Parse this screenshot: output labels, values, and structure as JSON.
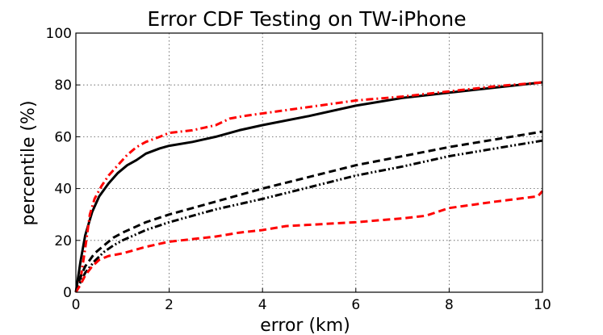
{
  "chart_data": {
    "type": "line",
    "title": "Error CDF Testing on TW-iPhone",
    "xlabel": "error (km)",
    "ylabel": "percentile (%)",
    "xlim": [
      0,
      10
    ],
    "ylim": [
      0,
      100
    ],
    "x_ticks": [
      "0",
      "2",
      "4",
      "6",
      "8",
      "10"
    ],
    "y_ticks": [
      "0",
      "20",
      "40",
      "60",
      "80",
      "100"
    ],
    "grid": true,
    "legend": "none",
    "series": [
      {
        "color": "#000000",
        "style": "solid",
        "points": [
          [
            0,
            0
          ],
          [
            0.1,
            12
          ],
          [
            0.2,
            22
          ],
          [
            0.35,
            31
          ],
          [
            0.5,
            37
          ],
          [
            0.7,
            42
          ],
          [
            0.9,
            46
          ],
          [
            1.1,
            49
          ],
          [
            1.3,
            51
          ],
          [
            1.5,
            53.5
          ],
          [
            1.8,
            55.5
          ],
          [
            2,
            56.5
          ],
          [
            2.5,
            58
          ],
          [
            3,
            60
          ],
          [
            3.5,
            62.5
          ],
          [
            4,
            64.5
          ],
          [
            5,
            68
          ],
          [
            6,
            72
          ],
          [
            7,
            75
          ],
          [
            8,
            77
          ],
          [
            9,
            79
          ],
          [
            10,
            81
          ]
        ]
      },
      {
        "color": "#ff0000",
        "style": "dashdot",
        "points": [
          [
            0,
            0
          ],
          [
            0.1,
            5
          ],
          [
            0.2,
            17
          ],
          [
            0.3,
            30
          ],
          [
            0.4,
            36
          ],
          [
            0.55,
            41
          ],
          [
            0.7,
            45
          ],
          [
            0.9,
            49
          ],
          [
            1.1,
            53
          ],
          [
            1.3,
            56
          ],
          [
            1.5,
            58
          ],
          [
            1.8,
            60
          ],
          [
            2,
            61.5
          ],
          [
            2.5,
            62.5
          ],
          [
            3,
            64.5
          ],
          [
            3.3,
            67
          ],
          [
            3.6,
            68
          ],
          [
            4,
            69
          ],
          [
            5,
            71.5
          ],
          [
            6,
            74
          ],
          [
            7,
            75.5
          ],
          [
            8,
            77.5
          ],
          [
            9,
            79.5
          ],
          [
            10,
            81
          ]
        ]
      },
      {
        "color": "#000000",
        "style": "dashed",
        "points": [
          [
            0,
            0
          ],
          [
            0.1,
            6
          ],
          [
            0.2,
            10
          ],
          [
            0.4,
            15
          ],
          [
            0.6,
            18
          ],
          [
            0.8,
            21
          ],
          [
            1,
            23
          ],
          [
            1.5,
            27
          ],
          [
            2,
            30
          ],
          [
            3,
            35
          ],
          [
            4,
            40
          ],
          [
            5,
            44.5
          ],
          [
            6,
            49
          ],
          [
            7,
            52.5
          ],
          [
            8,
            56
          ],
          [
            9,
            59
          ],
          [
            10,
            62
          ]
        ]
      },
      {
        "color": "#000000",
        "style": "dashdotdot",
        "points": [
          [
            0,
            0
          ],
          [
            0.1,
            4
          ],
          [
            0.2,
            7.5
          ],
          [
            0.4,
            12
          ],
          [
            0.6,
            15.5
          ],
          [
            0.8,
            18
          ],
          [
            1,
            20
          ],
          [
            1.5,
            24
          ],
          [
            2,
            27
          ],
          [
            3,
            32
          ],
          [
            4,
            36
          ],
          [
            5,
            40.5
          ],
          [
            6,
            45
          ],
          [
            7,
            48.5
          ],
          [
            8,
            52.5
          ],
          [
            9,
            55.5
          ],
          [
            10,
            58.5
          ]
        ]
      },
      {
        "color": "#ff0000",
        "style": "dashed",
        "points": [
          [
            0,
            0
          ],
          [
            0.1,
            3
          ],
          [
            0.2,
            6.5
          ],
          [
            0.35,
            10
          ],
          [
            0.5,
            12.5
          ],
          [
            0.7,
            14
          ],
          [
            1,
            15
          ],
          [
            1.5,
            17.5
          ],
          [
            2,
            19.5
          ],
          [
            3,
            21.5
          ],
          [
            3.5,
            23
          ],
          [
            4,
            24
          ],
          [
            4.5,
            25.5
          ],
          [
            5,
            26
          ],
          [
            6,
            27
          ],
          [
            7,
            28.5
          ],
          [
            7.5,
            29.5
          ],
          [
            8,
            32.5
          ],
          [
            9,
            35
          ],
          [
            9.9,
            37
          ],
          [
            10,
            39
          ]
        ]
      }
    ]
  }
}
